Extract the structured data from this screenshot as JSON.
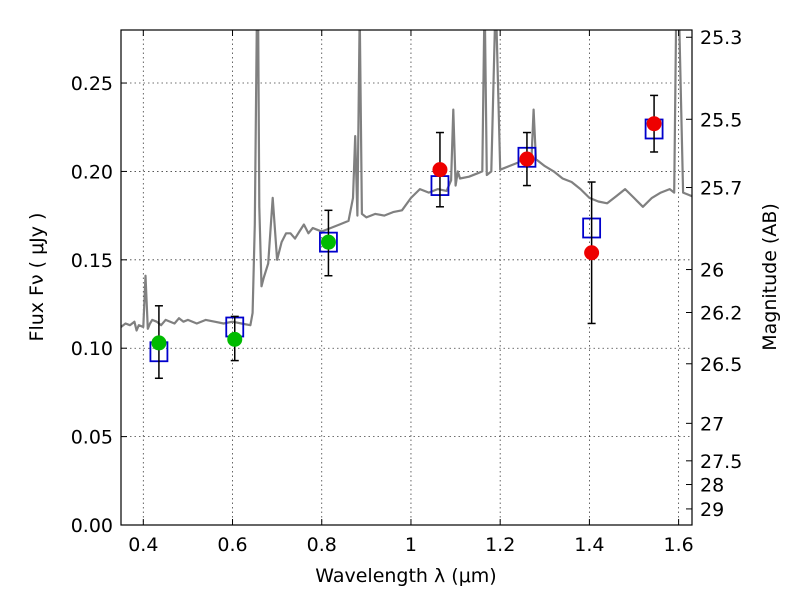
{
  "chart_data": {
    "type": "scatter",
    "title": "",
    "xlabel": "Wavelength  λ (μm)",
    "ylabel": "Flux  Fν  ( μJy )",
    "y2label": "Magnitude (AB)",
    "xlim": [
      0.35,
      1.63
    ],
    "ylim": [
      0.0,
      0.28
    ],
    "grid": true,
    "x_ticks": [
      "0.4",
      "0.6",
      "0.8",
      "1",
      "1.2",
      "1.4",
      "1.6"
    ],
    "x_tick_values": [
      0.4,
      0.6,
      0.8,
      1.0,
      1.2,
      1.4,
      1.6
    ],
    "y_ticks": [
      "0.00",
      "0.05",
      "0.10",
      "0.15",
      "0.20",
      "0.25"
    ],
    "y_tick_values": [
      0.0,
      0.05,
      0.1,
      0.15,
      0.2,
      0.25
    ],
    "y2_ticks": [
      {
        "label": "25.3",
        "flux": 0.2759
      },
      {
        "label": "25.5",
        "flux": 0.2295
      },
      {
        "label": "25.7",
        "flux": 0.1909
      },
      {
        "label": "26",
        "flux": 0.1445
      },
      {
        "label": "26.2",
        "flux": 0.1202
      },
      {
        "label": "26.5",
        "flux": 0.0912
      },
      {
        "label": "27",
        "flux": 0.0575
      },
      {
        "label": "27.5",
        "flux": 0.0363
      },
      {
        "label": "28",
        "flux": 0.0229
      },
      {
        "label": "29",
        "flux": 0.0091
      }
    ],
    "series": [
      {
        "kind": "model-spectrum",
        "color": "#808080",
        "x": [
          0.35,
          0.36,
          0.37,
          0.38,
          0.385,
          0.39,
          0.4,
          0.405,
          0.41,
          0.415,
          0.42,
          0.43,
          0.44,
          0.45,
          0.47,
          0.48,
          0.49,
          0.5,
          0.52,
          0.54,
          0.56,
          0.58,
          0.6,
          0.62,
          0.64,
          0.645,
          0.65,
          0.655,
          0.656,
          0.657,
          0.66,
          0.665,
          0.67,
          0.68,
          0.69,
          0.7,
          0.71,
          0.72,
          0.73,
          0.74,
          0.75,
          0.76,
          0.77,
          0.78,
          0.79,
          0.8,
          0.82,
          0.84,
          0.86,
          0.87,
          0.875,
          0.88,
          0.885,
          0.89,
          0.9,
          0.92,
          0.94,
          0.96,
          0.98,
          1.0,
          1.02,
          1.04,
          1.06,
          1.08,
          1.09,
          1.095,
          1.1,
          1.105,
          1.11,
          1.13,
          1.15,
          1.16,
          1.165,
          1.17,
          1.18,
          1.19,
          1.2,
          1.22,
          1.24,
          1.26,
          1.27,
          1.275,
          1.28,
          1.29,
          1.3,
          1.32,
          1.34,
          1.36,
          1.38,
          1.4,
          1.42,
          1.44,
          1.46,
          1.48,
          1.5,
          1.52,
          1.54,
          1.56,
          1.58,
          1.59,
          1.595,
          1.6,
          1.61,
          1.62,
          1.63
        ],
        "y": [
          0.112,
          0.114,
          0.113,
          0.115,
          0.11,
          0.113,
          0.112,
          0.141,
          0.111,
          0.114,
          0.116,
          0.115,
          0.113,
          0.116,
          0.114,
          0.117,
          0.115,
          0.116,
          0.114,
          0.116,
          0.115,
          0.114,
          0.115,
          0.114,
          0.113,
          0.12,
          0.17,
          0.3,
          0.3,
          0.3,
          0.18,
          0.135,
          0.14,
          0.148,
          0.185,
          0.15,
          0.16,
          0.165,
          0.165,
          0.162,
          0.166,
          0.17,
          0.165,
          0.168,
          0.167,
          0.166,
          0.168,
          0.17,
          0.172,
          0.185,
          0.22,
          0.175,
          0.29,
          0.176,
          0.174,
          0.176,
          0.175,
          0.177,
          0.178,
          0.185,
          0.19,
          0.188,
          0.19,
          0.189,
          0.195,
          0.235,
          0.192,
          0.2,
          0.196,
          0.197,
          0.199,
          0.2,
          0.3,
          0.198,
          0.2,
          0.3,
          0.201,
          0.203,
          0.205,
          0.21,
          0.206,
          0.235,
          0.207,
          0.205,
          0.203,
          0.2,
          0.196,
          0.194,
          0.19,
          0.185,
          0.183,
          0.182,
          0.186,
          0.19,
          0.185,
          0.18,
          0.185,
          0.188,
          0.19,
          0.188,
          0.3,
          0.3,
          0.188,
          0.187,
          0.186
        ]
      },
      {
        "kind": "model-photometry",
        "marker": "open-square",
        "color": "#0000cc",
        "x": [
          0.435,
          0.605,
          0.815,
          1.065,
          1.26,
          1.405,
          1.545
        ],
        "y": [
          0.098,
          0.112,
          0.16,
          0.192,
          0.208,
          0.168,
          0.224
        ]
      },
      {
        "kind": "observed-optical",
        "marker": "filled-circle",
        "color": "#00bb00",
        "x": [
          0.435,
          0.605,
          0.815
        ],
        "y": [
          0.103,
          0.105,
          0.16
        ],
        "yerr_low": [
          0.02,
          0.012,
          0.019
        ],
        "yerr_high": [
          0.021,
          0.013,
          0.018
        ]
      },
      {
        "kind": "observed-infrared",
        "marker": "filled-circle",
        "color": "#ee0000",
        "x": [
          1.065,
          1.26,
          1.405,
          1.545
        ],
        "y": [
          0.201,
          0.207,
          0.154,
          0.227
        ],
        "yerr_low": [
          0.021,
          0.015,
          0.04,
          0.016
        ],
        "yerr_high": [
          0.021,
          0.015,
          0.04,
          0.016
        ]
      }
    ]
  }
}
